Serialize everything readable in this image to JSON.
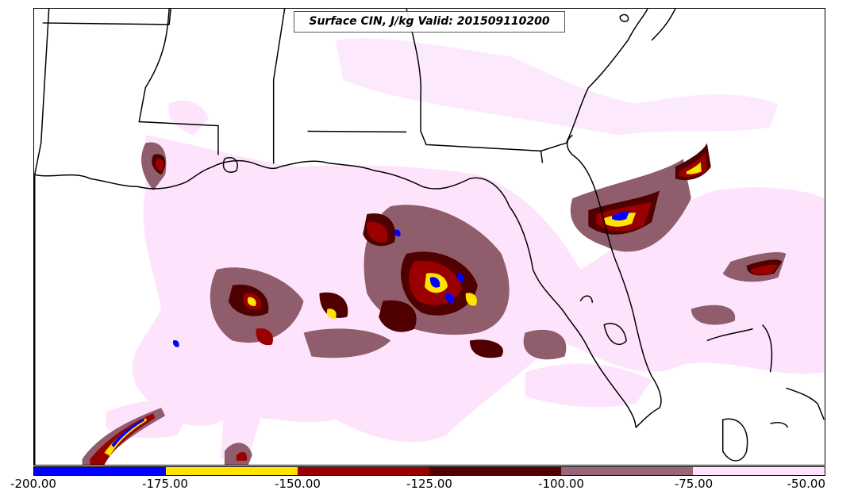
{
  "title": "Surface CIN, J/kg Valid: 201509110200",
  "colorbar": {
    "ticks": [
      "-200.00",
      "-175.00",
      "-150.00",
      "-125.00",
      "-100.00",
      "-75.00",
      "-50.00"
    ],
    "colors": [
      "#0000ff",
      "#ffe400",
      "#9b0000",
      "#520000",
      "#996677",
      "#ffe3ff"
    ]
  },
  "palette": {
    "light_pink": "#fde4fc",
    "mauve": "#8f5d6b",
    "dark_maroon": "#4f0000",
    "dark_red": "#9b0000",
    "yellow": "#ffe400",
    "blue": "#0000ff",
    "coast": "#000000"
  }
}
